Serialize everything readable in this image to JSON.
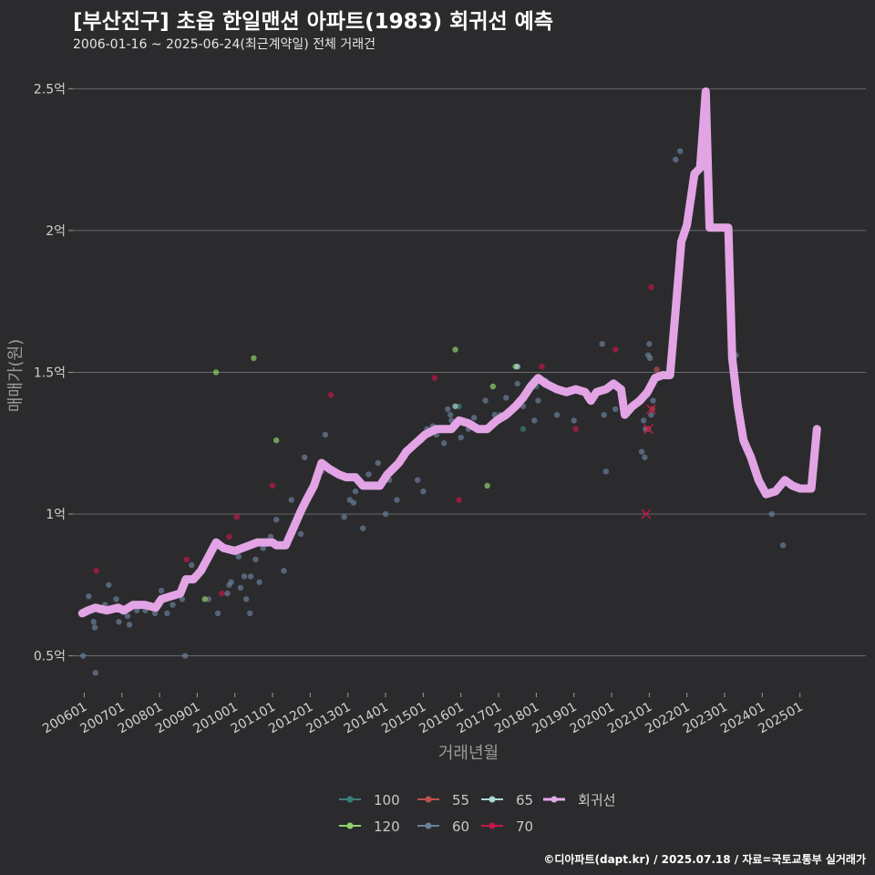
{
  "title": "[부산진구] 초읍 한일맨션 아파트(1983) 회귀선 예측",
  "subtitle": "2006-01-16 ~ 2025-06-24(최근계약일) 전체 거래건",
  "footer": "©디아파트(dapt.kr) / 2025.07.18 / 자료=국토교통부 실거래가",
  "chart_data": {
    "type": "scatter",
    "xlabel": "거래년월",
    "ylabel": "매매가(원)",
    "ylim": [
      0.37,
      2.62
    ],
    "xlim": [
      2005.7,
      2026.75
    ],
    "y_ticks": [
      {
        "value": 0.5,
        "label": "0.5억"
      },
      {
        "value": 1.0,
        "label": "1억"
      },
      {
        "value": 1.5,
        "label": "1.5억"
      },
      {
        "value": 2.0,
        "label": "2억"
      },
      {
        "value": 2.5,
        "label": "2.5억"
      }
    ],
    "x_ticks": [
      {
        "value": 2006.0,
        "label": "200601"
      },
      {
        "value": 2007.0,
        "label": "200701"
      },
      {
        "value": 2008.0,
        "label": "200801"
      },
      {
        "value": 2009.0,
        "label": "200901"
      },
      {
        "value": 2010.0,
        "label": "201001"
      },
      {
        "value": 2011.0,
        "label": "201101"
      },
      {
        "value": 2012.0,
        "label": "201201"
      },
      {
        "value": 2013.0,
        "label": "201301"
      },
      {
        "value": 2014.0,
        "label": "201401"
      },
      {
        "value": 2015.0,
        "label": "201501"
      },
      {
        "value": 2016.0,
        "label": "201601"
      },
      {
        "value": 2017.0,
        "label": "201701"
      },
      {
        "value": 2018.0,
        "label": "201801"
      },
      {
        "value": 2019.0,
        "label": "201901"
      },
      {
        "value": 2020.0,
        "label": "202001"
      },
      {
        "value": 2021.0,
        "label": "202101"
      },
      {
        "value": 2022.0,
        "label": "202201"
      },
      {
        "value": 2023.0,
        "label": "202301"
      },
      {
        "value": 2024.0,
        "label": "202401"
      },
      {
        "value": 2025.0,
        "label": "202501"
      }
    ],
    "legend": [
      {
        "name": "100",
        "color": "#3a7d7a",
        "line": false
      },
      {
        "name": "55",
        "color": "#c0504d",
        "line": false
      },
      {
        "name": "65",
        "color": "#a8d8d8",
        "line": false
      },
      {
        "name": "회귀선",
        "color": "#e8a8ea",
        "line": true
      },
      {
        "name": "120",
        "color": "#8fd16a",
        "line": false
      },
      {
        "name": "60",
        "color": "#6a7f9a",
        "line": false
      },
      {
        "name": "70",
        "color": "#c01848",
        "line": false
      }
    ],
    "series": [
      {
        "name": "60",
        "color": "#6a7f9a",
        "points": [
          [
            2005.97,
            0.5
          ],
          [
            2006.12,
            0.71
          ],
          [
            2006.25,
            0.62
          ],
          [
            2006.28,
            0.6
          ],
          [
            2006.3,
            0.44
          ],
          [
            2006.42,
            0.66
          ],
          [
            2006.55,
            0.68
          ],
          [
            2006.65,
            0.75
          ],
          [
            2006.85,
            0.7
          ],
          [
            2006.92,
            0.62
          ],
          [
            2007.15,
            0.64
          ],
          [
            2007.2,
            0.61
          ],
          [
            2007.4,
            0.66
          ],
          [
            2007.62,
            0.66
          ],
          [
            2007.88,
            0.65
          ],
          [
            2008.05,
            0.73
          ],
          [
            2008.2,
            0.65
          ],
          [
            2008.35,
            0.68
          ],
          [
            2008.6,
            0.7
          ],
          [
            2008.68,
            0.5
          ],
          [
            2008.85,
            0.82
          ],
          [
            2009.3,
            0.7
          ],
          [
            2009.55,
            0.65
          ],
          [
            2009.8,
            0.72
          ],
          [
            2009.85,
            0.75
          ],
          [
            2009.9,
            0.76
          ],
          [
            2010.1,
            0.85
          ],
          [
            2010.15,
            0.74
          ],
          [
            2010.25,
            0.78
          ],
          [
            2010.3,
            0.7
          ],
          [
            2010.4,
            0.65
          ],
          [
            2010.42,
            0.78
          ],
          [
            2010.55,
            0.84
          ],
          [
            2010.65,
            0.76
          ],
          [
            2010.75,
            0.88
          ],
          [
            2010.9,
            0.9
          ],
          [
            2010.95,
            0.92
          ],
          [
            2011.1,
            0.98
          ],
          [
            2011.3,
            0.8
          ],
          [
            2011.5,
            1.05
          ],
          [
            2011.75,
            0.93
          ],
          [
            2011.85,
            1.2
          ],
          [
            2012.3,
            1.15
          ],
          [
            2012.4,
            1.28
          ],
          [
            2012.9,
            0.99
          ],
          [
            2013.05,
            1.05
          ],
          [
            2013.15,
            1.04
          ],
          [
            2013.2,
            1.08
          ],
          [
            2013.4,
            0.95
          ],
          [
            2013.55,
            1.14
          ],
          [
            2013.8,
            1.18
          ],
          [
            2014.0,
            1.0
          ],
          [
            2014.1,
            1.12
          ],
          [
            2014.3,
            1.05
          ],
          [
            2014.5,
            1.22
          ],
          [
            2014.85,
            1.12
          ],
          [
            2014.95,
            1.26
          ],
          [
            2015.0,
            1.08
          ],
          [
            2015.1,
            1.3
          ],
          [
            2015.25,
            1.31
          ],
          [
            2015.35,
            1.28
          ],
          [
            2015.55,
            1.25
          ],
          [
            2015.65,
            1.37
          ],
          [
            2015.72,
            1.35
          ],
          [
            2015.75,
            1.33
          ],
          [
            2015.85,
            1.32
          ],
          [
            2016.0,
            1.27
          ],
          [
            2016.2,
            1.3
          ],
          [
            2016.35,
            1.34
          ],
          [
            2016.55,
            1.3
          ],
          [
            2016.65,
            1.4
          ],
          [
            2016.9,
            1.35
          ],
          [
            2017.05,
            1.35
          ],
          [
            2017.2,
            1.41
          ],
          [
            2017.5,
            1.46
          ],
          [
            2017.65,
            1.38
          ],
          [
            2017.95,
            1.33
          ],
          [
            2018.05,
            1.4
          ],
          [
            2018.25,
            1.47
          ],
          [
            2018.55,
            1.35
          ],
          [
            2019.0,
            1.33
          ],
          [
            2019.35,
            1.41
          ],
          [
            2019.75,
            1.6
          ],
          [
            2019.8,
            1.35
          ],
          [
            2019.85,
            1.15
          ],
          [
            2020.1,
            1.37
          ],
          [
            2020.3,
            1.4
          ],
          [
            2020.6,
            1.38
          ],
          [
            2020.8,
            1.22
          ],
          [
            2020.85,
            1.33
          ],
          [
            2020.88,
            1.2
          ],
          [
            2020.9,
            1.3
          ],
          [
            2020.95,
            1.42
          ],
          [
            2020.97,
            1.56
          ],
          [
            2021.0,
            1.6
          ],
          [
            2021.02,
            1.55
          ],
          [
            2021.05,
            1.35
          ],
          [
            2021.1,
            1.4
          ],
          [
            2021.7,
            2.25
          ],
          [
            2021.82,
            2.28
          ],
          [
            2023.3,
            1.56
          ],
          [
            2024.25,
            1.0
          ],
          [
            2024.55,
            0.89
          ]
        ]
      },
      {
        "name": "70",
        "color": "#c01848",
        "points": [
          [
            2006.32,
            0.8
          ],
          [
            2008.72,
            0.84
          ],
          [
            2009.65,
            0.72
          ],
          [
            2009.85,
            0.92
          ],
          [
            2010.05,
            0.99
          ],
          [
            2011.0,
            1.1
          ],
          [
            2012.55,
            1.42
          ],
          [
            2015.3,
            1.48
          ],
          [
            2015.95,
            1.05
          ],
          [
            2018.15,
            1.52
          ],
          [
            2019.05,
            1.3
          ],
          [
            2020.1,
            1.58
          ],
          [
            2021.05,
            1.8
          ]
        ]
      },
      {
        "name": "55",
        "color": "#c0504d",
        "points": [
          [
            2020.97,
            1.3
          ],
          [
            2021.08,
            1.37
          ],
          [
            2021.2,
            1.51
          ]
        ]
      },
      {
        "name": "120",
        "color": "#8fd16a",
        "points": [
          [
            2009.5,
            1.5
          ],
          [
            2010.5,
            1.55
          ],
          [
            2011.1,
            1.26
          ],
          [
            2015.85,
            1.58
          ],
          [
            2017.45,
            1.52
          ],
          [
            2016.7,
            1.1
          ],
          [
            2016.85,
            1.45
          ],
          [
            2009.2,
            0.7
          ]
        ]
      },
      {
        "name": "100",
        "color": "#3a7d7a",
        "points": [
          [
            2015.95,
            1.38
          ],
          [
            2017.65,
            1.3
          ],
          [
            2018.0,
            1.45
          ]
        ]
      },
      {
        "name": "65",
        "color": "#a8d8d8",
        "points": [
          [
            2015.85,
            1.38
          ],
          [
            2017.5,
            1.52
          ]
        ]
      }
    ],
    "cancelled": [
      [
        2020.92,
        1.0
      ],
      [
        2020.98,
        1.3
      ],
      [
        2021.05,
        1.37
      ]
    ],
    "regression": [
      [
        2005.95,
        0.65
      ],
      [
        2006.1,
        0.66
      ],
      [
        2006.3,
        0.67
      ],
      [
        2006.6,
        0.66
      ],
      [
        2006.9,
        0.67
      ],
      [
        2007.05,
        0.66
      ],
      [
        2007.3,
        0.68
      ],
      [
        2007.6,
        0.68
      ],
      [
        2007.9,
        0.67
      ],
      [
        2008.05,
        0.7
      ],
      [
        2008.3,
        0.71
      ],
      [
        2008.55,
        0.72
      ],
      [
        2008.7,
        0.77
      ],
      [
        2008.9,
        0.77
      ],
      [
        2009.1,
        0.8
      ],
      [
        2009.3,
        0.85
      ],
      [
        2009.5,
        0.9
      ],
      [
        2009.7,
        0.88
      ],
      [
        2010.0,
        0.87
      ],
      [
        2010.2,
        0.88
      ],
      [
        2010.4,
        0.89
      ],
      [
        2010.6,
        0.9
      ],
      [
        2010.8,
        0.9
      ],
      [
        2011.0,
        0.9
      ],
      [
        2011.1,
        0.89
      ],
      [
        2011.35,
        0.89
      ],
      [
        2011.55,
        0.95
      ],
      [
        2011.75,
        1.01
      ],
      [
        2011.9,
        1.05
      ],
      [
        2012.1,
        1.1
      ],
      [
        2012.3,
        1.18
      ],
      [
        2012.5,
        1.16
      ],
      [
        2012.75,
        1.14
      ],
      [
        2012.95,
        1.13
      ],
      [
        2013.2,
        1.13
      ],
      [
        2013.4,
        1.1
      ],
      [
        2013.6,
        1.1
      ],
      [
        2013.85,
        1.1
      ],
      [
        2014.05,
        1.14
      ],
      [
        2014.35,
        1.18
      ],
      [
        2014.55,
        1.22
      ],
      [
        2014.8,
        1.25
      ],
      [
        2015.05,
        1.28
      ],
      [
        2015.35,
        1.3
      ],
      [
        2015.75,
        1.3
      ],
      [
        2015.95,
        1.33
      ],
      [
        2016.2,
        1.32
      ],
      [
        2016.45,
        1.3
      ],
      [
        2016.7,
        1.3
      ],
      [
        2016.95,
        1.33
      ],
      [
        2017.2,
        1.35
      ],
      [
        2017.45,
        1.38
      ],
      [
        2017.65,
        1.41
      ],
      [
        2017.85,
        1.45
      ],
      [
        2018.05,
        1.48
      ],
      [
        2018.25,
        1.46
      ],
      [
        2018.55,
        1.44
      ],
      [
        2018.8,
        1.43
      ],
      [
        2019.05,
        1.44
      ],
      [
        2019.3,
        1.43
      ],
      [
        2019.45,
        1.4
      ],
      [
        2019.6,
        1.43
      ],
      [
        2019.85,
        1.44
      ],
      [
        2020.05,
        1.46
      ],
      [
        2020.25,
        1.44
      ],
      [
        2020.35,
        1.35
      ],
      [
        2020.55,
        1.38
      ],
      [
        2020.75,
        1.4
      ],
      [
        2020.95,
        1.43
      ],
      [
        2021.15,
        1.48
      ],
      [
        2021.35,
        1.49
      ],
      [
        2021.55,
        1.49
      ],
      [
        2021.7,
        1.72
      ],
      [
        2021.85,
        1.96
      ],
      [
        2022.0,
        2.02
      ],
      [
        2022.2,
        2.2
      ],
      [
        2022.35,
        2.22
      ],
      [
        2022.5,
        2.49
      ],
      [
        2022.6,
        2.01
      ],
      [
        2022.85,
        2.01
      ],
      [
        2023.1,
        2.01
      ],
      [
        2023.2,
        1.55
      ],
      [
        2023.35,
        1.38
      ],
      [
        2023.5,
        1.26
      ],
      [
        2023.7,
        1.2
      ],
      [
        2023.9,
        1.12
      ],
      [
        2024.1,
        1.07
      ],
      [
        2024.35,
        1.08
      ],
      [
        2024.6,
        1.12
      ],
      [
        2024.8,
        1.1
      ],
      [
        2025.0,
        1.09
      ],
      [
        2025.3,
        1.09
      ],
      [
        2025.45,
        1.3
      ]
    ]
  }
}
